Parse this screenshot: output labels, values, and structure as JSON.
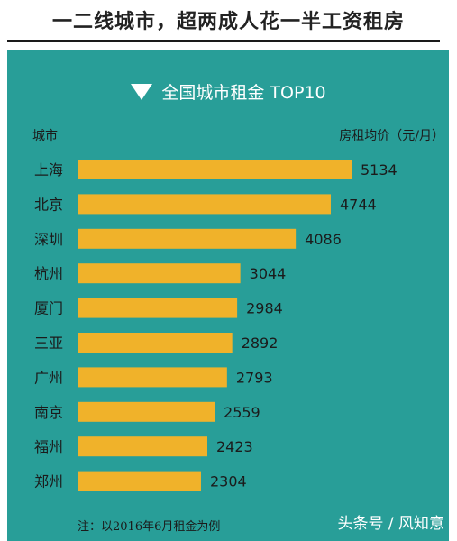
{
  "headline": "一二线城市，超两成人花一半工资租房",
  "colors": {
    "panel": "#289e98",
    "bar": "#f0b22a",
    "text": "#1b1b1b"
  },
  "chart_data": {
    "type": "bar",
    "orientation": "horizontal",
    "title": "全国城市租金 TOP10",
    "xlabel": "房租均价（元/月）",
    "ylabel": "城市",
    "categories": [
      "上海",
      "北京",
      "深圳",
      "杭州",
      "厦门",
      "三亚",
      "广州",
      "南京",
      "福州",
      "郑州"
    ],
    "values": [
      5134,
      4744,
      4086,
      3044,
      2984,
      2892,
      2793,
      2559,
      2423,
      2304
    ],
    "xlim": [
      0,
      5134
    ],
    "grid": false,
    "legend": "none"
  },
  "note": "注：以2016年6月租金为例",
  "watermark": "头条号 / 风知意"
}
